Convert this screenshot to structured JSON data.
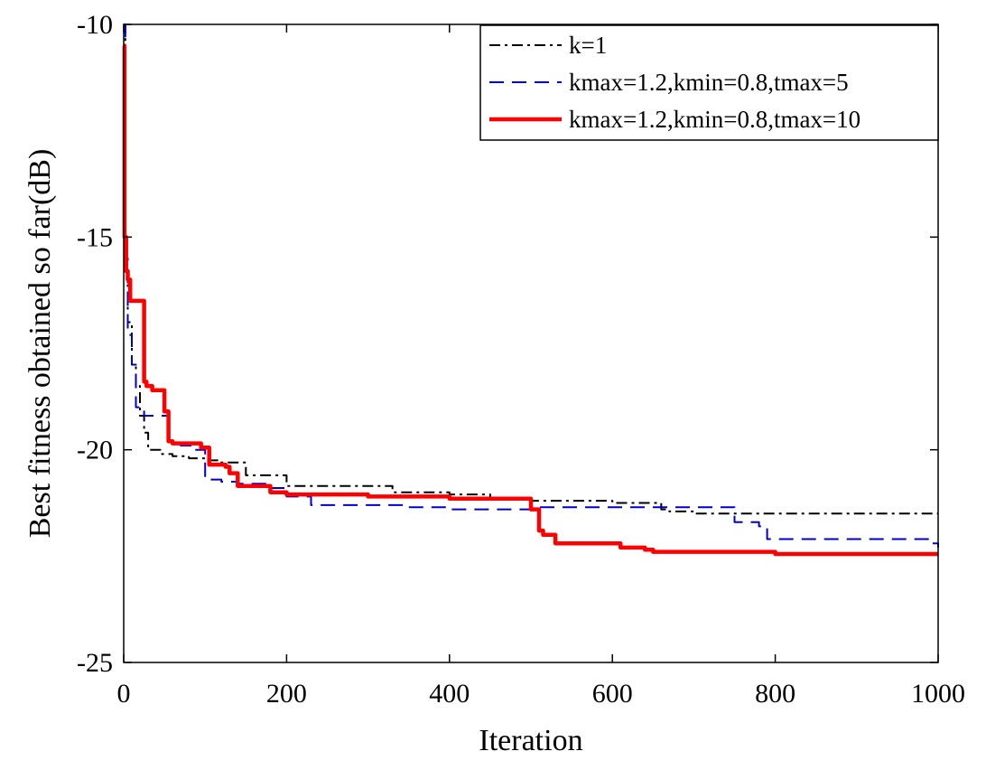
{
  "chart_data": {
    "type": "line",
    "title": "",
    "xlabel": "Iteration",
    "ylabel": "Best fitness obtained so far(dB)",
    "xlim": [
      0,
      1000
    ],
    "ylim": [
      -25,
      -10
    ],
    "xticks": [
      0,
      200,
      400,
      600,
      800,
      1000
    ],
    "yticks": [
      -25,
      -20,
      -15,
      -10
    ],
    "xtick_labels": [
      "0",
      "200",
      "400",
      "600",
      "800",
      "1000"
    ],
    "ytick_labels": [
      "-25",
      "-20",
      "-15",
      "-10"
    ],
    "grid": false,
    "legend_position": "top-right",
    "series": [
      {
        "name": "k=1",
        "color": "#000000",
        "style": "dash-dot",
        "x": [
          0,
          2,
          5,
          10,
          15,
          20,
          25,
          30,
          45,
          60,
          80,
          100,
          120,
          140,
          150,
          180,
          200,
          320,
          330,
          400,
          450,
          500,
          600,
          650,
          660,
          670,
          700,
          800,
          900,
          1000
        ],
        "y": [
          -10.0,
          -15.7,
          -17.0,
          -18.0,
          -18.5,
          -19.2,
          -19.6,
          -20.0,
          -20.1,
          -20.15,
          -20.2,
          -20.25,
          -20.3,
          -20.3,
          -20.6,
          -20.6,
          -20.85,
          -20.85,
          -21.0,
          -21.05,
          -21.15,
          -21.2,
          -21.25,
          -21.25,
          -21.4,
          -21.45,
          -21.5,
          -21.5,
          -21.5,
          -21.5
        ]
      },
      {
        "name": "kmax=1.2,kmin=0.8,tmax=5",
        "color": "#0000cc",
        "style": "dashed",
        "x": [
          0,
          2,
          5,
          10,
          15,
          25,
          40,
          55,
          70,
          85,
          100,
          120,
          140,
          150,
          180,
          200,
          230,
          300,
          350,
          400,
          500,
          600,
          700,
          740,
          750,
          780,
          790,
          800,
          850,
          900,
          990,
          1000
        ],
        "y": [
          -10.0,
          -15.5,
          -17.3,
          -18.0,
          -19.0,
          -19.2,
          -19.2,
          -19.8,
          -19.9,
          -20.0,
          -20.7,
          -20.75,
          -20.8,
          -20.8,
          -20.9,
          -21.1,
          -21.3,
          -21.3,
          -21.35,
          -21.4,
          -21.35,
          -21.35,
          -21.35,
          -21.35,
          -21.7,
          -21.8,
          -22.1,
          -22.1,
          -22.1,
          -22.1,
          -22.2,
          -22.3
        ]
      },
      {
        "name": "kmax=1.2,kmin=0.8,tmax=10",
        "color": "#ff0000",
        "style": "solid",
        "x": [
          0,
          1,
          3,
          5,
          8,
          20,
          25,
          28,
          35,
          45,
          50,
          55,
          60,
          75,
          95,
          105,
          110,
          125,
          130,
          140,
          175,
          180,
          200,
          300,
          400,
          490,
          500,
          510,
          515,
          530,
          600,
          610,
          640,
          650,
          680,
          800,
          900,
          1000
        ],
        "y": [
          -10.5,
          -15.0,
          -15.8,
          -16.0,
          -16.5,
          -16.5,
          -18.4,
          -18.5,
          -18.6,
          -18.6,
          -19.1,
          -19.8,
          -19.85,
          -19.85,
          -19.95,
          -20.35,
          -20.35,
          -20.4,
          -20.55,
          -20.85,
          -20.85,
          -21.0,
          -21.05,
          -21.1,
          -21.15,
          -21.15,
          -21.4,
          -21.9,
          -22.0,
          -22.2,
          -22.2,
          -22.3,
          -22.35,
          -22.4,
          -22.4,
          -22.45,
          -22.45,
          -22.45
        ]
      }
    ]
  }
}
